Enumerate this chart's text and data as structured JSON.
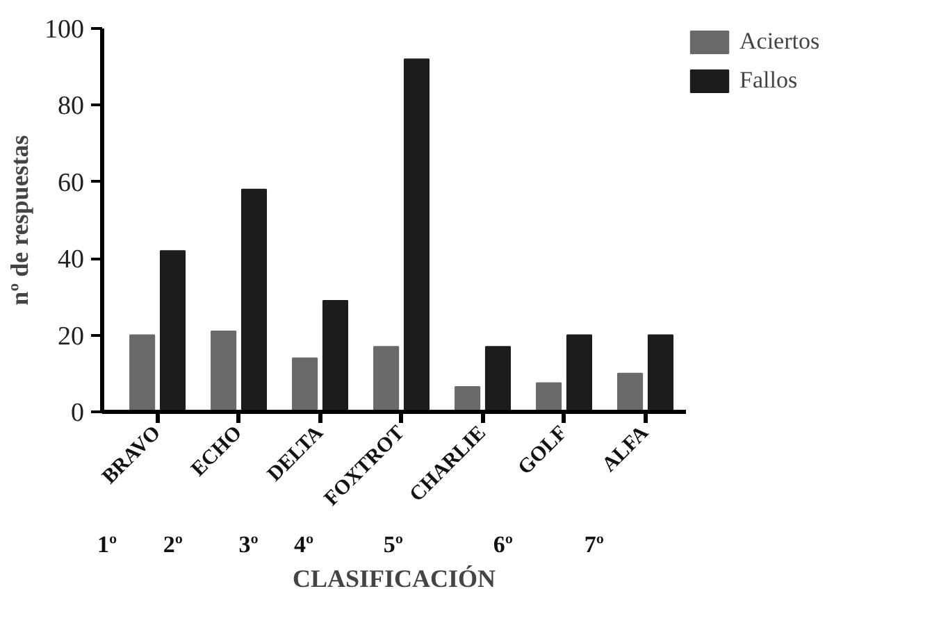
{
  "chart_data": {
    "type": "bar",
    "xlabel": "CLASIFICACIÓN",
    "ylabel": "nº de respuestas",
    "categories": [
      "BRAVO",
      "ECHO",
      "DELTA",
      "FOXTROT",
      "CHARLIE",
      "GOLF",
      "ALFA"
    ],
    "series": [
      {
        "name": "Aciertos",
        "color": "#6a6a6a",
        "values": [
          20,
          21,
          14,
          17,
          6.5,
          7.5,
          10
        ]
      },
      {
        "name": "Fallos",
        "color": "#1c1c1c",
        "values": [
          42,
          58,
          29,
          92,
          17,
          20,
          20
        ]
      }
    ],
    "annotations": [
      "1º",
      "2º",
      "3º",
      "4º",
      "5º",
      "6º",
      "7º"
    ],
    "ylim": [
      0,
      100
    ],
    "yticks": [
      0,
      20,
      40,
      60,
      80,
      100
    ],
    "grid": false,
    "legend": "top right"
  }
}
